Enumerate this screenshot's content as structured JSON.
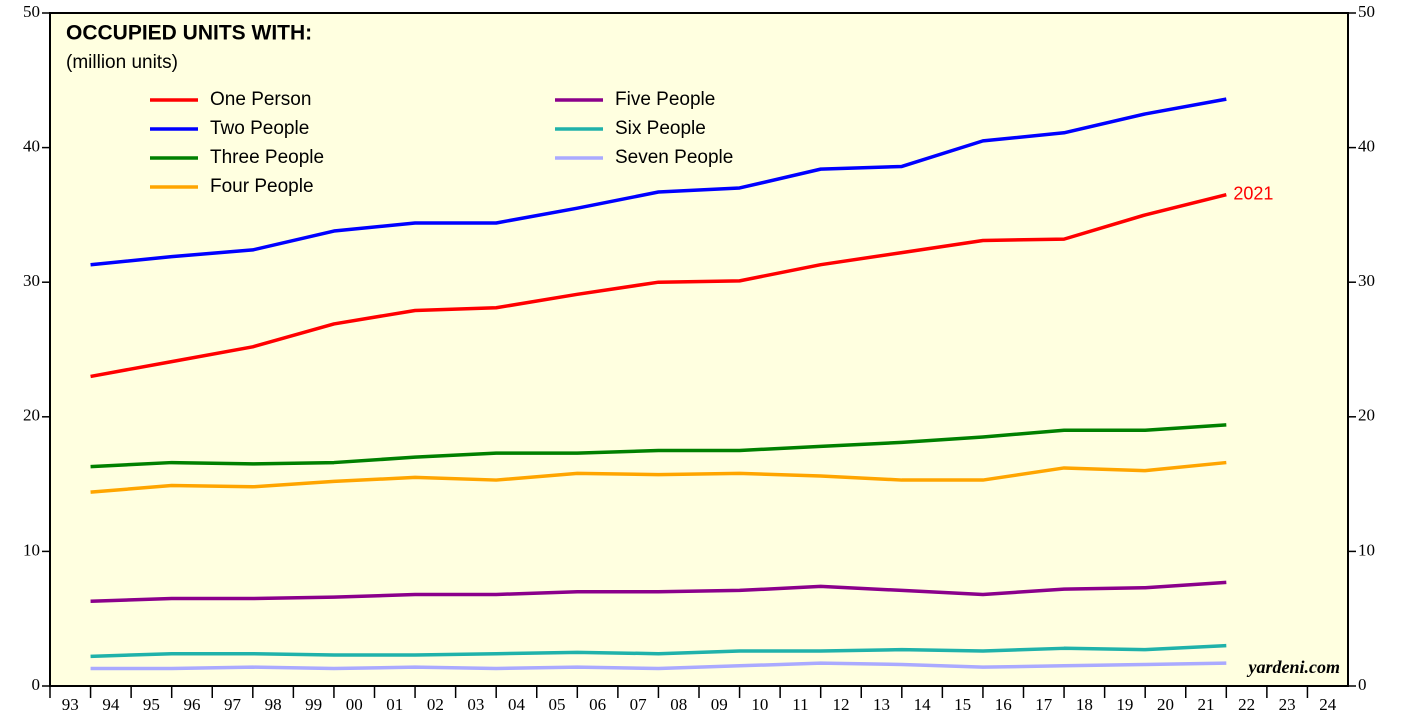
{
  "chart_data": {
    "type": "line",
    "title": "OCCUPIED UNITS WITH:",
    "subtitle": "(million units)",
    "annotations": [
      "2021",
      "yardeni.com"
    ],
    "x": [
      1993,
      1995,
      1997,
      1999,
      2001,
      2003,
      2005,
      2007,
      2009,
      2011,
      2013,
      2015,
      2017,
      2019,
      2021
    ],
    "series": [
      {
        "name": "One Person",
        "color": "#ff0000",
        "values": [
          23.0,
          24.1,
          25.2,
          26.9,
          27.9,
          28.1,
          29.1,
          30.0,
          30.1,
          31.3,
          32.2,
          33.1,
          33.2,
          35.0,
          36.5
        ]
      },
      {
        "name": "Two People",
        "color": "#0000ff",
        "values": [
          31.3,
          31.9,
          32.4,
          33.8,
          34.4,
          34.4,
          35.5,
          36.7,
          37.0,
          38.4,
          38.6,
          40.5,
          41.1,
          42.5,
          43.6
        ]
      },
      {
        "name": "Three People",
        "color": "#008000",
        "values": [
          16.3,
          16.6,
          16.5,
          16.6,
          17.0,
          17.3,
          17.3,
          17.5,
          17.5,
          17.8,
          18.1,
          18.5,
          19.0,
          19.0,
          19.4
        ]
      },
      {
        "name": "Four People",
        "color": "#ffa500",
        "values": [
          14.4,
          14.9,
          14.8,
          15.2,
          15.5,
          15.3,
          15.8,
          15.7,
          15.8,
          15.6,
          15.3,
          15.3,
          16.2,
          16.0,
          16.6
        ]
      },
      {
        "name": "Five People",
        "color": "#8b008b",
        "values": [
          6.3,
          6.5,
          6.5,
          6.6,
          6.8,
          6.8,
          7.0,
          7.0,
          7.1,
          7.4,
          7.1,
          6.8,
          7.2,
          7.3,
          7.7
        ]
      },
      {
        "name": "Six People",
        "color": "#20b2aa",
        "values": [
          2.2,
          2.4,
          2.4,
          2.3,
          2.3,
          2.4,
          2.5,
          2.4,
          2.6,
          2.6,
          2.7,
          2.6,
          2.8,
          2.7,
          3.0
        ]
      },
      {
        "name": "Seven People",
        "color": "#aaaaff",
        "values": [
          1.3,
          1.3,
          1.4,
          1.3,
          1.4,
          1.3,
          1.4,
          1.3,
          1.5,
          1.7,
          1.6,
          1.4,
          1.5,
          1.6,
          1.7
        ]
      }
    ],
    "xlim": [
      1993,
      2025
    ],
    "xticks": [
      {
        "value": 1993,
        "label": "93"
      },
      {
        "value": 1994,
        "label": "94"
      },
      {
        "value": 1995,
        "label": "95"
      },
      {
        "value": 1996,
        "label": "96"
      },
      {
        "value": 1997,
        "label": "97"
      },
      {
        "value": 1998,
        "label": "98"
      },
      {
        "value": 1999,
        "label": "99"
      },
      {
        "value": 2000,
        "label": "00"
      },
      {
        "value": 2001,
        "label": "01"
      },
      {
        "value": 2002,
        "label": "02"
      },
      {
        "value": 2003,
        "label": "03"
      },
      {
        "value": 2004,
        "label": "04"
      },
      {
        "value": 2005,
        "label": "05"
      },
      {
        "value": 2006,
        "label": "06"
      },
      {
        "value": 2007,
        "label": "07"
      },
      {
        "value": 2008,
        "label": "08"
      },
      {
        "value": 2009,
        "label": "09"
      },
      {
        "value": 2010,
        "label": "10"
      },
      {
        "value": 2011,
        "label": "11"
      },
      {
        "value": 2012,
        "label": "12"
      },
      {
        "value": 2013,
        "label": "13"
      },
      {
        "value": 2014,
        "label": "14"
      },
      {
        "value": 2015,
        "label": "15"
      },
      {
        "value": 2016,
        "label": "16"
      },
      {
        "value": 2017,
        "label": "17"
      },
      {
        "value": 2018,
        "label": "18"
      },
      {
        "value": 2019,
        "label": "19"
      },
      {
        "value": 2020,
        "label": "20"
      },
      {
        "value": 2021,
        "label": "21"
      },
      {
        "value": 2022,
        "label": "22"
      },
      {
        "value": 2023,
        "label": "23"
      },
      {
        "value": 2024,
        "label": "24"
      }
    ],
    "ylim": [
      0,
      50
    ],
    "yticks": [
      0,
      10,
      20,
      30,
      40,
      50
    ],
    "y2lim": [
      0,
      50
    ],
    "y2ticks": [
      0,
      10,
      20,
      30,
      40,
      50
    ],
    "background": "#ffffe0",
    "grid": false,
    "legend": "upper left"
  }
}
